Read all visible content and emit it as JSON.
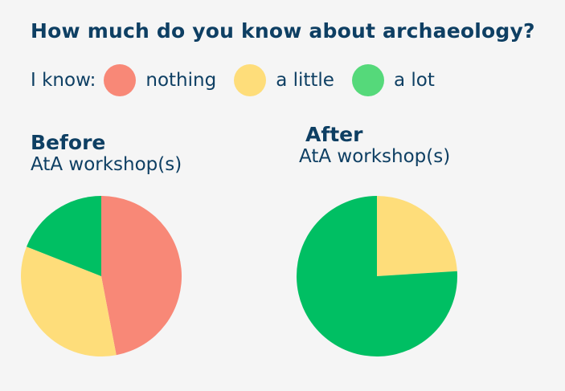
{
  "title": "How much do you know about archaeology?",
  "legend": {
    "prefix": "I know:",
    "items": [
      {
        "label": "nothing",
        "color": "#f88877"
      },
      {
        "label": "a little",
        "color": "#fedd7a"
      },
      {
        "label": "a lot",
        "color": "#55d97a"
      }
    ]
  },
  "chart_data": [
    {
      "type": "pie",
      "title": "Before",
      "subtitle": "AtA workshop(s)",
      "categories": [
        "nothing",
        "a little",
        "a lot"
      ],
      "values": [
        47,
        34,
        19
      ],
      "colors": [
        "#f88877",
        "#fedd7a",
        "#00bf63"
      ]
    },
    {
      "type": "pie",
      "title": "After",
      "subtitle": "AtA workshop(s)",
      "categories": [
        "nothing",
        "a little",
        "a lot"
      ],
      "values": [
        0,
        24,
        76
      ],
      "colors": [
        "#f88877",
        "#fedd7a",
        "#00bf63"
      ]
    }
  ]
}
